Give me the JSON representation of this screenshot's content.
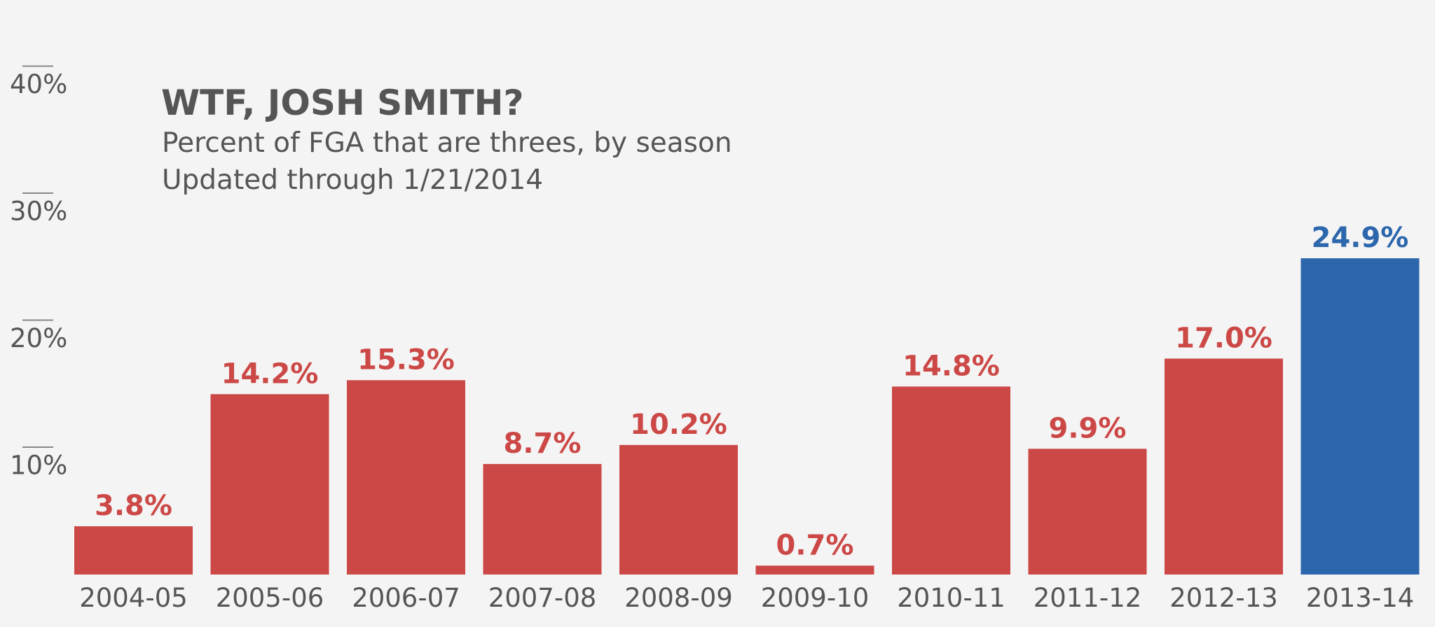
{
  "colors": {
    "background": "#f4f4f4",
    "text": "#555555",
    "bar_default": "#cc4846",
    "bar_highlight": "#2c66ac",
    "tick_line": "#888888"
  },
  "chart_data": {
    "type": "bar",
    "title": "WTF, JOSH SMITH?",
    "subtitle": "Percent of FGA that are threes, by season",
    "note": "Updated through 1/21/2014",
    "xlabel": "",
    "ylabel": "",
    "categories": [
      "2004-05",
      "2005-06",
      "2006-07",
      "2007-08",
      "2008-09",
      "2009-10",
      "2010-11",
      "2011-12",
      "2012-13",
      "2013-14"
    ],
    "values": [
      3.8,
      14.2,
      15.3,
      8.7,
      10.2,
      0.7,
      14.8,
      9.9,
      17.0,
      24.9
    ],
    "value_labels": [
      "3.8%",
      "14.2%",
      "15.3%",
      "8.7%",
      "10.2%",
      "0.7%",
      "14.8%",
      "9.9%",
      "17.0%",
      "24.9%"
    ],
    "highlight_index": 9,
    "ylim": [
      0,
      40
    ],
    "yticks": [
      10,
      20,
      30,
      40
    ],
    "ytick_labels": [
      "10%",
      "20%",
      "30%",
      "40%"
    ],
    "grid": false,
    "legend": "none"
  }
}
